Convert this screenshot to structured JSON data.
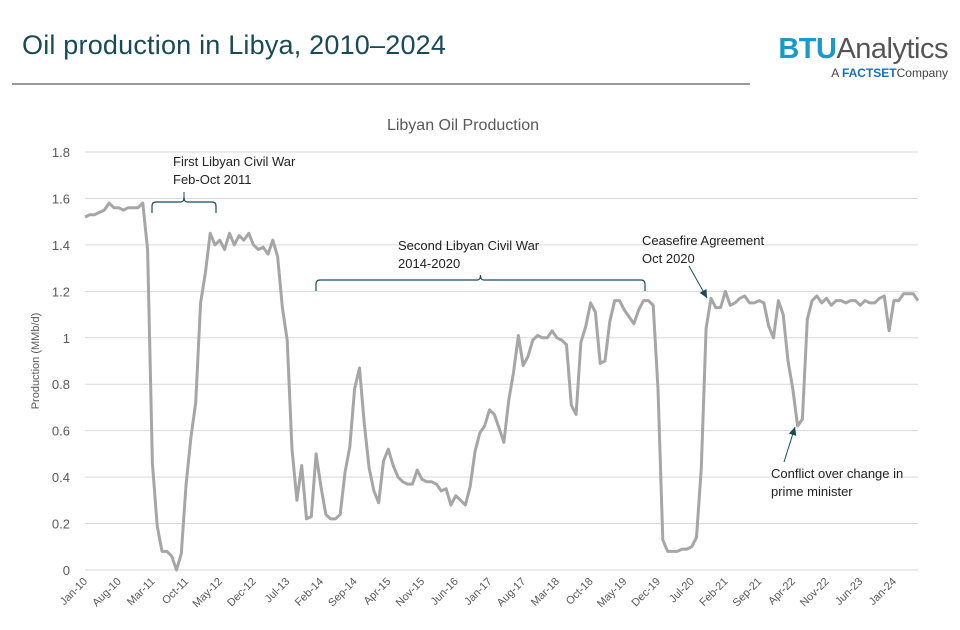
{
  "header": {
    "title": "Oil production in Libya, 2010–2024",
    "logo": {
      "brand": "BTU",
      "brand_suffix": "Analytics",
      "tagline_prefix": "A",
      "tagline_brand": "FACTSET",
      "tagline_suffix": "Company"
    }
  },
  "colors": {
    "line": "#a6a6a6",
    "grid": "#d9d9d9",
    "annotation": "#1b4a57",
    "title": "#1b4a57",
    "brand": "#1a9ac9"
  },
  "chart_data": {
    "type": "line",
    "title": "Libyan Oil Production",
    "xlabel": "",
    "ylabel": "Production (MMb/d)",
    "ylim": [
      0,
      1.8
    ],
    "yticks": [
      "0",
      "0.2",
      "0.4",
      "0.6",
      "0.8",
      "1",
      "1.2",
      "1.4",
      "1.6",
      "1.8"
    ],
    "grid": true,
    "x_start": "Jan-10",
    "x_frequency": "monthly",
    "x_tick_labels": [
      "Jan-10",
      "Aug-10",
      "Mar-11",
      "Oct-11",
      "May-12",
      "Dec-12",
      "Jul-13",
      "Feb-14",
      "Sep-14",
      "Apr-15",
      "Nov-15",
      "Jun-16",
      "Jan-17",
      "Aug-17",
      "Mar-18",
      "Oct-18",
      "May-19",
      "Dec-19",
      "Jul-20",
      "Feb-21",
      "Sep-21",
      "Apr-22",
      "Nov-22",
      "Jun-23",
      "Jan-24"
    ],
    "series": [
      {
        "values": [
          1.52,
          1.53,
          1.53,
          1.54,
          1.55,
          1.58,
          1.56,
          1.56,
          1.55,
          1.56,
          1.56,
          1.56,
          1.58,
          1.38,
          0.46,
          0.19,
          0.08,
          0.08,
          0.06,
          0.0,
          0.07,
          0.37,
          0.57,
          0.72,
          1.15,
          1.28,
          1.45,
          1.4,
          1.42,
          1.38,
          1.45,
          1.4,
          1.44,
          1.42,
          1.45,
          1.4,
          1.38,
          1.39,
          1.36,
          1.42,
          1.35,
          1.13,
          0.99,
          0.52,
          0.3,
          0.45,
          0.22,
          0.23,
          0.5,
          0.36,
          0.24,
          0.22,
          0.22,
          0.24,
          0.42,
          0.53,
          0.78,
          0.87,
          0.63,
          0.44,
          0.34,
          0.29,
          0.47,
          0.52,
          0.45,
          0.4,
          0.38,
          0.37,
          0.37,
          0.43,
          0.39,
          0.38,
          0.38,
          0.37,
          0.34,
          0.35,
          0.28,
          0.32,
          0.3,
          0.28,
          0.36,
          0.51,
          0.59,
          0.62,
          0.69,
          0.67,
          0.61,
          0.55,
          0.73,
          0.85,
          1.01,
          0.88,
          0.92,
          0.99,
          1.01,
          1.0,
          1.0,
          1.03,
          1.0,
          0.99,
          0.97,
          0.71,
          0.67,
          0.98,
          1.05,
          1.15,
          1.11,
          0.89,
          0.9,
          1.07,
          1.16,
          1.16,
          1.12,
          1.09,
          1.06,
          1.12,
          1.16,
          1.16,
          1.14,
          0.78,
          0.13,
          0.08,
          0.08,
          0.08,
          0.09,
          0.09,
          0.1,
          0.14,
          0.44,
          1.04,
          1.17,
          1.13,
          1.13,
          1.2,
          1.14,
          1.15,
          1.17,
          1.18,
          1.15,
          1.15,
          1.16,
          1.15,
          1.05,
          1.0,
          1.16,
          1.1,
          0.9,
          0.78,
          0.62,
          0.65,
          1.08,
          1.16,
          1.18,
          1.15,
          1.17,
          1.14,
          1.16,
          1.16,
          1.15,
          1.16,
          1.16,
          1.14,
          1.16,
          1.15,
          1.15,
          1.17,
          1.18,
          1.03,
          1.16,
          1.16,
          1.19,
          1.19,
          1.19,
          1.16
        ]
      }
    ],
    "annotations": [
      {
        "lines": [
          "First Libyan Civil War",
          "Feb-Oct 2011"
        ],
        "marker": "brace"
      },
      {
        "lines": [
          "Second Libyan Civil War",
          "2014-2020"
        ],
        "marker": "brace"
      },
      {
        "lines": [
          "Ceasefire Agreement",
          "Oct 2020"
        ],
        "marker": "arrow"
      },
      {
        "lines": [
          "Conflict over change in",
          "prime minister"
        ],
        "marker": "arrow"
      }
    ]
  }
}
